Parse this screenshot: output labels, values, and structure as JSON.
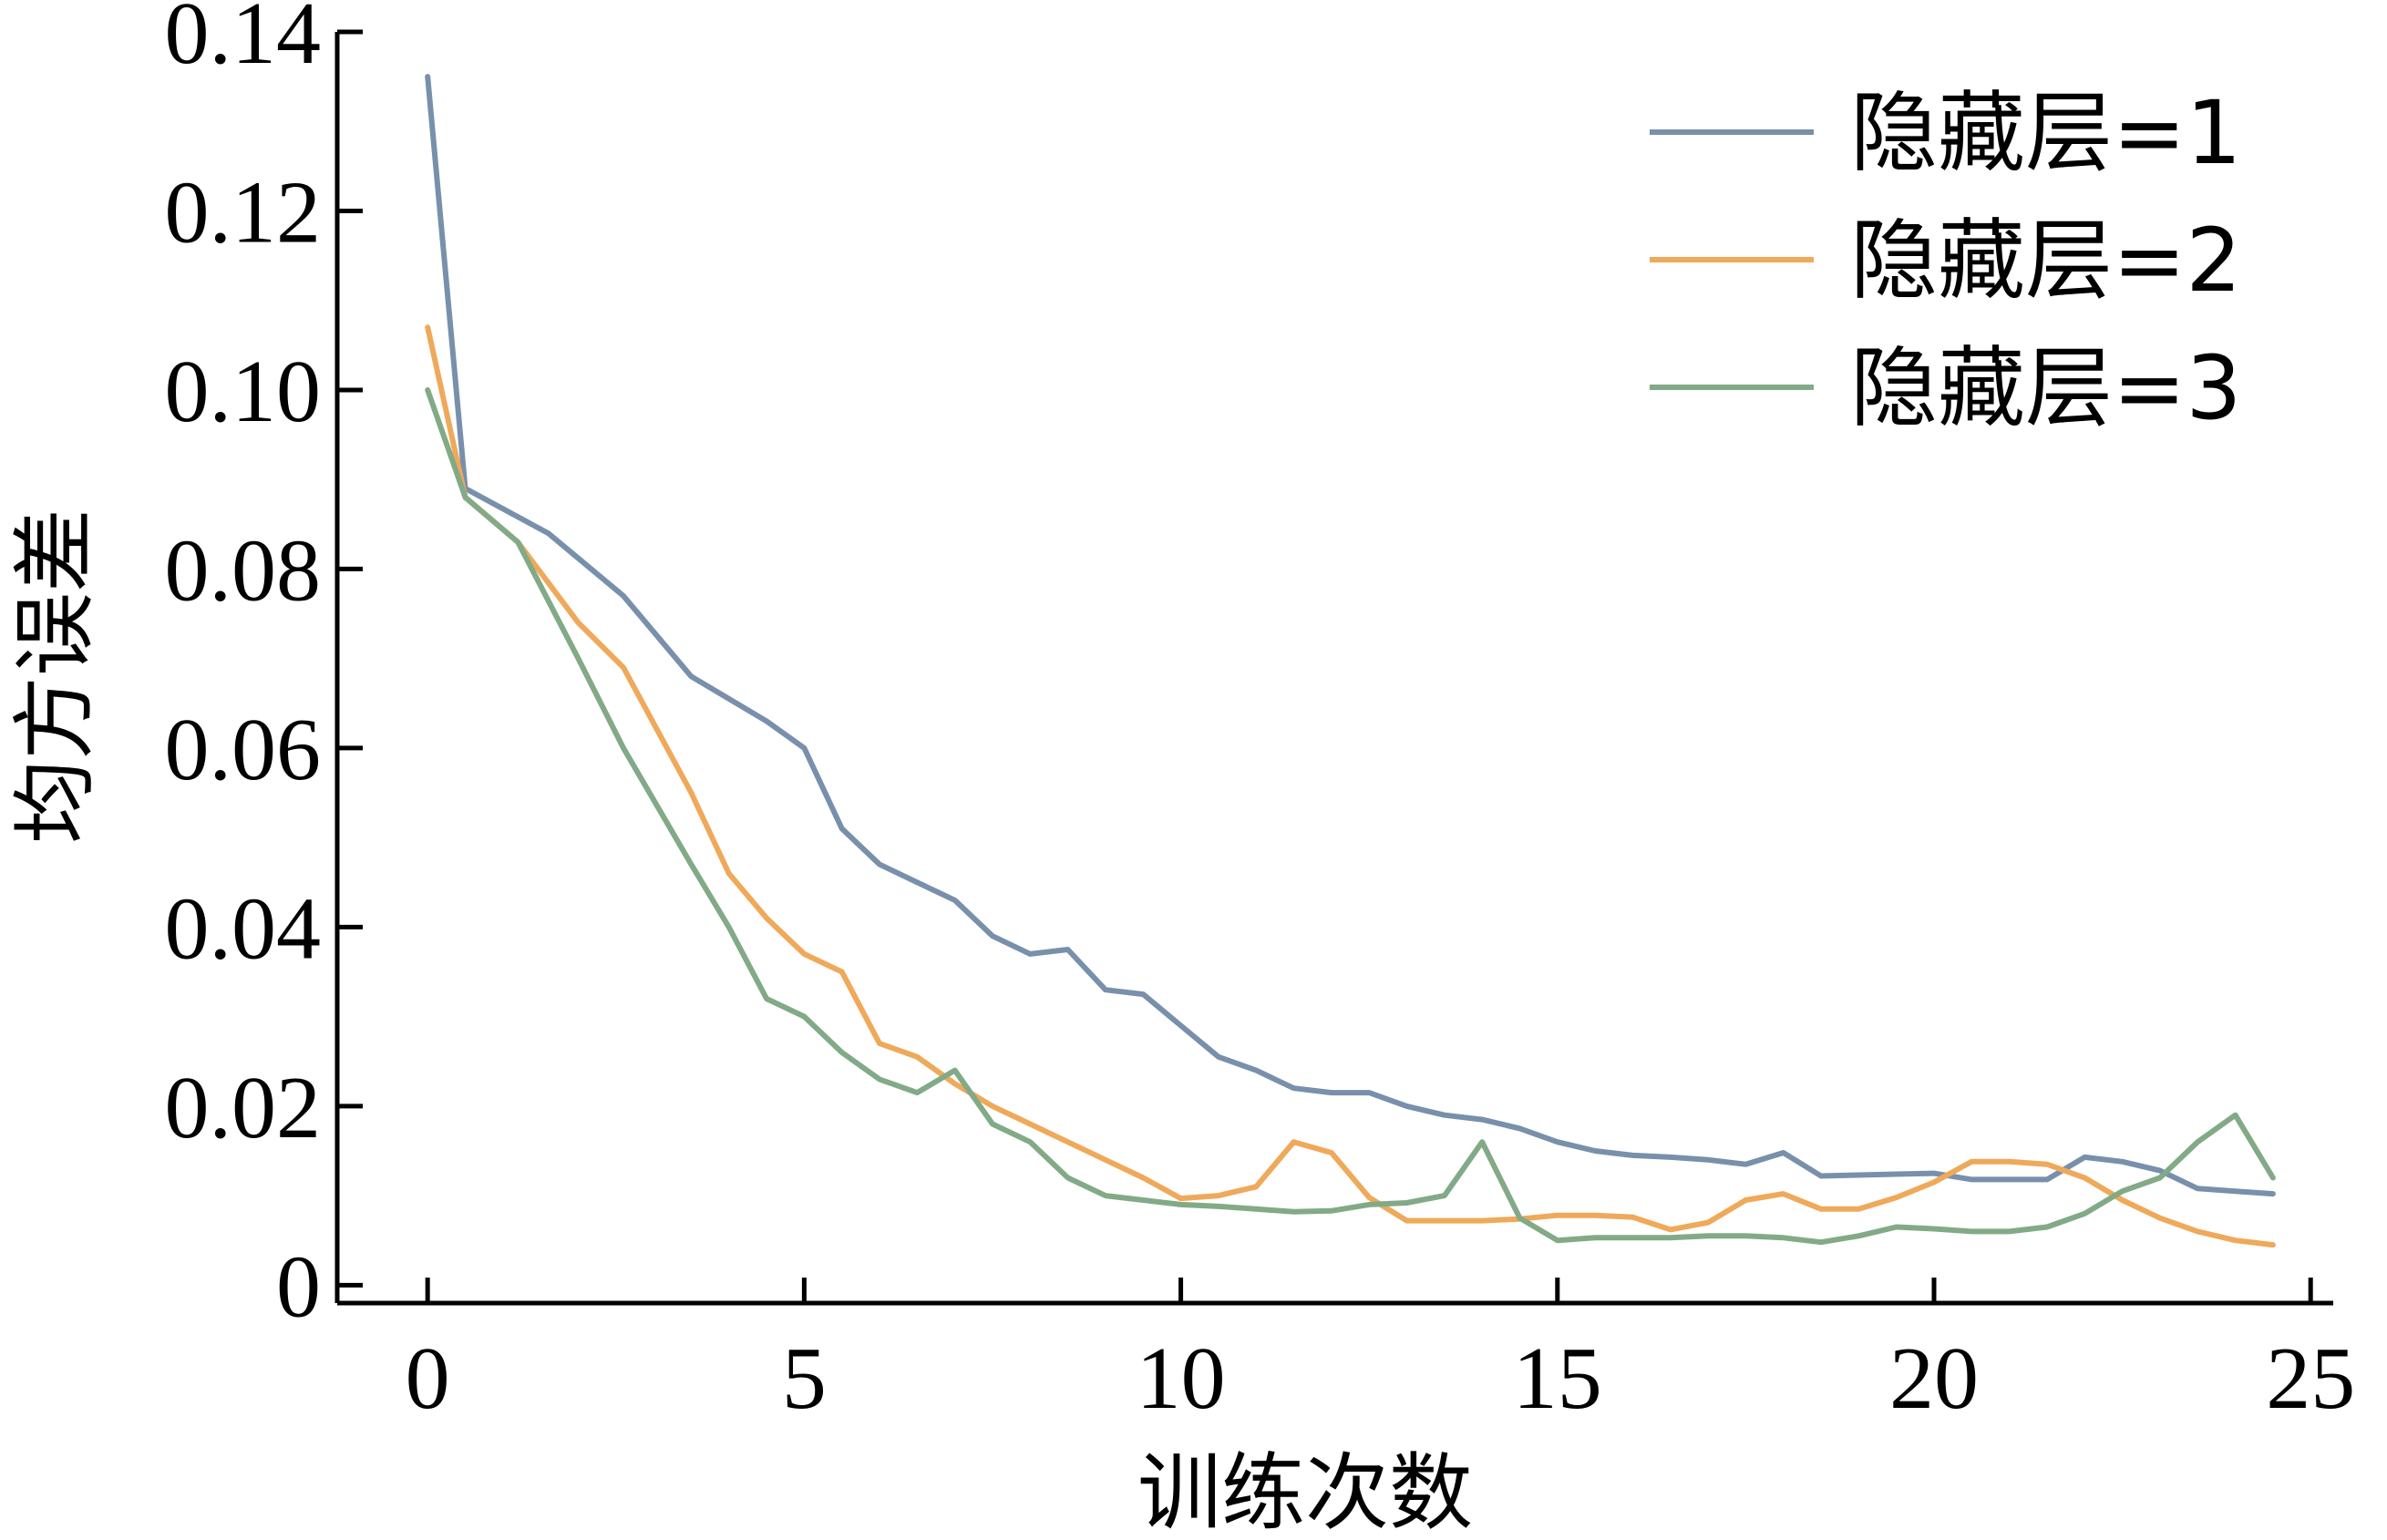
{
  "chart_data": {
    "type": "line",
    "title": "",
    "xlabel": "训练次数",
    "ylabel": "均方误差",
    "xlim": [
      -1.2,
      25.3
    ],
    "ylim": [
      -0.002,
      0.14
    ],
    "xticks": [
      0,
      5,
      10,
      15,
      20,
      25
    ],
    "xtick_labels": [
      "0",
      "5",
      "10",
      "15",
      "20",
      "25"
    ],
    "yticks": [
      0,
      0.02,
      0.04,
      0.06,
      0.08,
      0.1,
      0.12,
      0.14
    ],
    "ytick_labels": [
      "0",
      "0.02",
      "0.04",
      "0.06",
      "0.08",
      "0.10",
      "0.12",
      "0.14"
    ],
    "grid": false,
    "legend_position": "top-right",
    "series": [
      {
        "name": "隐藏层=1",
        "color": "#7890ab",
        "x": [
          0,
          0.5,
          1.6,
          2.6,
          3.5,
          4.5,
          5.0,
          5.5,
          6.0,
          6.5,
          7.0,
          7.5,
          8.0,
          8.5,
          9.0,
          9.5,
          10.0,
          10.5,
          11.0,
          11.5,
          12.0,
          12.5,
          13.0,
          13.5,
          14.0,
          14.5,
          15.0,
          15.5,
          16.0,
          16.5,
          17.0,
          17.5,
          18.0,
          18.5,
          19.0,
          19.5,
          20.0,
          20.5,
          21.0,
          21.5,
          22.0,
          22.5,
          23.0,
          23.5,
          24.0,
          24.5
        ],
        "y": [
          0.135,
          0.089,
          0.084,
          0.077,
          0.068,
          0.063,
          0.06,
          0.051,
          0.047,
          0.045,
          0.043,
          0.039,
          0.037,
          0.0375,
          0.033,
          0.0325,
          0.029,
          0.0255,
          0.024,
          0.022,
          0.0215,
          0.0215,
          0.02,
          0.019,
          0.0185,
          0.0175,
          0.016,
          0.015,
          0.0145,
          0.0143,
          0.014,
          0.0135,
          0.0148,
          0.0122,
          0.0123,
          0.0124,
          0.0125,
          0.0118,
          0.0118,
          0.0118,
          0.0143,
          0.0138,
          0.0128,
          0.0108,
          0.0105,
          0.0102
        ]
      },
      {
        "name": "隐藏层=2",
        "color": "#efa95a",
        "x": [
          0,
          0.5,
          1.2,
          2.0,
          2.6,
          3.5,
          4.0,
          4.5,
          5.0,
          5.5,
          6.0,
          6.5,
          7.0,
          7.5,
          8.0,
          8.5,
          9.0,
          9.5,
          10.0,
          10.5,
          11.0,
          11.5,
          12.0,
          12.5,
          13.0,
          13.5,
          14.0,
          14.5,
          15.0,
          15.5,
          16.0,
          16.5,
          17.0,
          17.5,
          18.0,
          18.5,
          19.0,
          19.5,
          20.0,
          20.5,
          21.0,
          21.5,
          22.0,
          22.5,
          23.0,
          23.5,
          24.0,
          24.5
        ],
        "y": [
          0.107,
          0.088,
          0.083,
          0.074,
          0.069,
          0.055,
          0.046,
          0.041,
          0.037,
          0.035,
          0.027,
          0.0255,
          0.0225,
          0.02,
          0.018,
          0.016,
          0.014,
          0.012,
          0.0097,
          0.01,
          0.011,
          0.016,
          0.0148,
          0.0098,
          0.0072,
          0.0072,
          0.0072,
          0.0074,
          0.0078,
          0.0078,
          0.0076,
          0.0062,
          0.007,
          0.0095,
          0.0102,
          0.0085,
          0.0085,
          0.0098,
          0.0115,
          0.0138,
          0.0138,
          0.0135,
          0.012,
          0.0095,
          0.0075,
          0.006,
          0.005,
          0.0045
        ]
      },
      {
        "name": "隐藏层=3",
        "color": "#82aa86",
        "x": [
          0,
          0.5,
          1.2,
          2.0,
          2.6,
          3.5,
          4.0,
          4.5,
          5.0,
          5.5,
          6.0,
          6.5,
          7.0,
          7.5,
          8.0,
          8.5,
          9.0,
          9.5,
          10.0,
          10.5,
          11.0,
          11.5,
          12.0,
          12.5,
          13.0,
          13.5,
          14.0,
          14.5,
          15.0,
          15.5,
          16.0,
          16.5,
          17.0,
          17.5,
          18.0,
          18.5,
          19.0,
          19.5,
          20.0,
          20.5,
          21.0,
          21.5,
          22.0,
          22.5,
          23.0,
          23.5,
          24.0,
          24.5
        ],
        "y": [
          0.1,
          0.088,
          0.083,
          0.07,
          0.06,
          0.047,
          0.04,
          0.032,
          0.03,
          0.026,
          0.023,
          0.0215,
          0.024,
          0.018,
          0.016,
          0.012,
          0.01,
          0.0095,
          0.009,
          0.0088,
          0.0085,
          0.0082,
          0.0083,
          0.009,
          0.0092,
          0.01,
          0.016,
          0.0075,
          0.005,
          0.0053,
          0.0053,
          0.0053,
          0.0055,
          0.0055,
          0.0053,
          0.0048,
          0.0055,
          0.0065,
          0.0063,
          0.006,
          0.006,
          0.0065,
          0.008,
          0.0105,
          0.012,
          0.016,
          0.019,
          0.012
        ]
      }
    ]
  }
}
